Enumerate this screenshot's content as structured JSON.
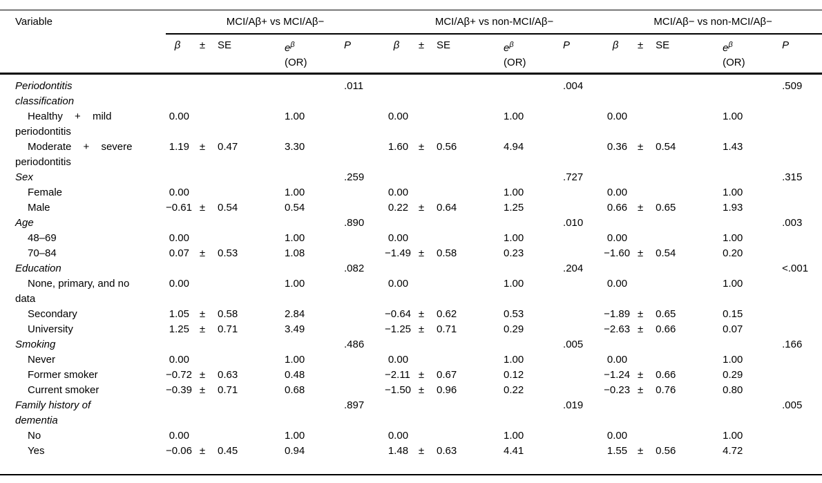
{
  "table": {
    "variable_header": "Variable",
    "groups": [
      "MCI/Aβ+ vs MCI/Aβ−",
      "MCI/Aβ+ vs non-MCI/Aβ−",
      "MCI/Aβ− vs non-MCI/Aβ−"
    ],
    "col_headers": {
      "beta": "β",
      "pm": "±",
      "se": "SE",
      "e": "e",
      "e_sup": "β",
      "or": "(OR)",
      "p": "P"
    },
    "rows": [
      {
        "kind": "section",
        "lines": [
          "Periodontitis",
          "classification"
        ],
        "p": [
          ".011",
          ".004",
          ".509"
        ]
      },
      {
        "kind": "item",
        "lines": [
          "Healthy + mild",
          "periodontitis"
        ],
        "groups": [
          [
            "0.00",
            "",
            "",
            "1.00"
          ],
          [
            "0.00",
            "",
            "",
            "1.00"
          ],
          [
            "0.00",
            "",
            "",
            "1.00"
          ]
        ]
      },
      {
        "kind": "item",
        "lines": [
          "Moderate + severe",
          "periodontitis"
        ],
        "groups": [
          [
            "1.19",
            "±",
            "0.47",
            "3.30"
          ],
          [
            "1.60",
            "±",
            "0.56",
            "4.94"
          ],
          [
            "0.36",
            "±",
            "0.54",
            "1.43"
          ]
        ]
      },
      {
        "kind": "section",
        "lines": [
          "Sex"
        ],
        "p": [
          ".259",
          ".727",
          ".315"
        ]
      },
      {
        "kind": "item",
        "lines": [
          "Female"
        ],
        "groups": [
          [
            "0.00",
            "",
            "",
            "1.00"
          ],
          [
            "0.00",
            "",
            "",
            "1.00"
          ],
          [
            "0.00",
            "",
            "",
            "1.00"
          ]
        ]
      },
      {
        "kind": "item",
        "lines": [
          "Male"
        ],
        "groups": [
          [
            "−0.61",
            "±",
            "0.54",
            "0.54"
          ],
          [
            "0.22",
            "±",
            "0.64",
            "1.25"
          ],
          [
            "0.66",
            "±",
            "0.65",
            "1.93"
          ]
        ]
      },
      {
        "kind": "section",
        "lines": [
          "Age"
        ],
        "p": [
          ".890",
          ".010",
          ".003"
        ]
      },
      {
        "kind": "item",
        "lines": [
          "48–69"
        ],
        "groups": [
          [
            "0.00",
            "",
            "",
            "1.00"
          ],
          [
            "0.00",
            "",
            "",
            "1.00"
          ],
          [
            "0.00",
            "",
            "",
            "1.00"
          ]
        ]
      },
      {
        "kind": "item",
        "lines": [
          "70–84"
        ],
        "groups": [
          [
            "0.07",
            "±",
            "0.53",
            "1.08"
          ],
          [
            "−1.49",
            "±",
            "0.58",
            "0.23"
          ],
          [
            "−1.60",
            "±",
            "0.54",
            "0.20"
          ]
        ]
      },
      {
        "kind": "section",
        "lines": [
          "Education"
        ],
        "p": [
          ".082",
          ".204",
          "<.001"
        ]
      },
      {
        "kind": "item",
        "lines": [
          "None, primary, and no",
          "data"
        ],
        "groups": [
          [
            "0.00",
            "",
            "",
            "1.00"
          ],
          [
            "0.00",
            "",
            "",
            "1.00"
          ],
          [
            "0.00",
            "",
            "",
            "1.00"
          ]
        ]
      },
      {
        "kind": "item",
        "lines": [
          "Secondary"
        ],
        "groups": [
          [
            "1.05",
            "±",
            "0.58",
            "2.84"
          ],
          [
            "−0.64",
            "±",
            "0.62",
            "0.53"
          ],
          [
            "−1.89",
            "±",
            "0.65",
            "0.15"
          ]
        ]
      },
      {
        "kind": "item",
        "lines": [
          "University"
        ],
        "groups": [
          [
            "1.25",
            "±",
            "0.71",
            "3.49"
          ],
          [
            "−1.25",
            "±",
            "0.71",
            "0.29"
          ],
          [
            "−2.63",
            "±",
            "0.66",
            "0.07"
          ]
        ]
      },
      {
        "kind": "section",
        "lines": [
          "Smoking"
        ],
        "p": [
          ".486",
          ".005",
          ".166"
        ]
      },
      {
        "kind": "item",
        "lines": [
          "Never"
        ],
        "groups": [
          [
            "0.00",
            "",
            "",
            "1.00"
          ],
          [
            "0.00",
            "",
            "",
            "1.00"
          ],
          [
            "0.00",
            "",
            "",
            "1.00"
          ]
        ]
      },
      {
        "kind": "item",
        "lines": [
          "Former smoker"
        ],
        "groups": [
          [
            "−0.72",
            "±",
            "0.63",
            "0.48"
          ],
          [
            "−2.11",
            "±",
            "0.67",
            "0.12"
          ],
          [
            "−1.24",
            "±",
            "0.66",
            "0.29"
          ]
        ]
      },
      {
        "kind": "item",
        "lines": [
          "Current smoker"
        ],
        "groups": [
          [
            "−0.39",
            "±",
            "0.71",
            "0.68"
          ],
          [
            "−1.50",
            "±",
            "0.96",
            "0.22"
          ],
          [
            "−0.23",
            "±",
            "0.76",
            "0.80"
          ]
        ]
      },
      {
        "kind": "section",
        "lines": [
          "Family history of",
          "dementia"
        ],
        "p": [
          ".897",
          ".019",
          ".005"
        ]
      },
      {
        "kind": "item",
        "lines": [
          "No"
        ],
        "groups": [
          [
            "0.00",
            "",
            "",
            "1.00"
          ],
          [
            "0.00",
            "",
            "",
            "1.00"
          ],
          [
            "0.00",
            "",
            "",
            "1.00"
          ]
        ]
      },
      {
        "kind": "item",
        "lines": [
          "Yes"
        ],
        "groups": [
          [
            "−0.06",
            "±",
            "0.45",
            "0.94"
          ],
          [
            "1.48",
            "±",
            "0.63",
            "4.41"
          ],
          [
            "1.55",
            "±",
            "0.56",
            "4.72"
          ]
        ]
      }
    ]
  }
}
